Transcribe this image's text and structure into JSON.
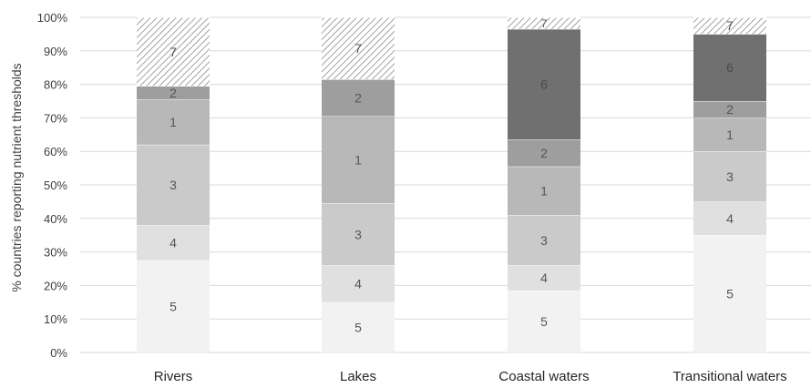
{
  "chart_data": {
    "type": "bar",
    "stacked": true,
    "ylabel": "% countries reporting nutrient thresholds",
    "xlabel": "",
    "ylim": [
      0,
      100
    ],
    "y_ticks": [
      "0%",
      "10%",
      "20%",
      "30%",
      "40%",
      "50%",
      "60%",
      "70%",
      "80%",
      "90%",
      "100%"
    ],
    "grid": true,
    "categories": [
      "Rivers",
      "Lakes",
      "Coastal waters",
      "Transitional waters"
    ],
    "series": [
      {
        "label": "5",
        "color": "#f2f2f2",
        "pattern": "",
        "values": [
          27.5,
          15,
          18.5,
          35
        ]
      },
      {
        "label": "4",
        "color": "#e0e0e0",
        "pattern": "",
        "values": [
          10.5,
          11,
          7.5,
          10
        ]
      },
      {
        "label": "3",
        "color": "#cacaca",
        "pattern": "",
        "values": [
          24,
          18.5,
          15,
          15
        ]
      },
      {
        "label": "1",
        "color": "#b8b8b8",
        "pattern": "",
        "values": [
          13.5,
          26,
          14.5,
          10
        ]
      },
      {
        "label": "2",
        "color": "#9e9e9e",
        "pattern": "",
        "values": [
          4,
          11,
          8,
          5
        ]
      },
      {
        "label": "6",
        "color": "#707070",
        "pattern": "",
        "values": [
          0,
          0,
          33,
          20
        ]
      },
      {
        "label": "7",
        "color": "#ffffff",
        "pattern": "hatch",
        "values": [
          20.5,
          18.5,
          3.5,
          5
        ]
      }
    ]
  }
}
